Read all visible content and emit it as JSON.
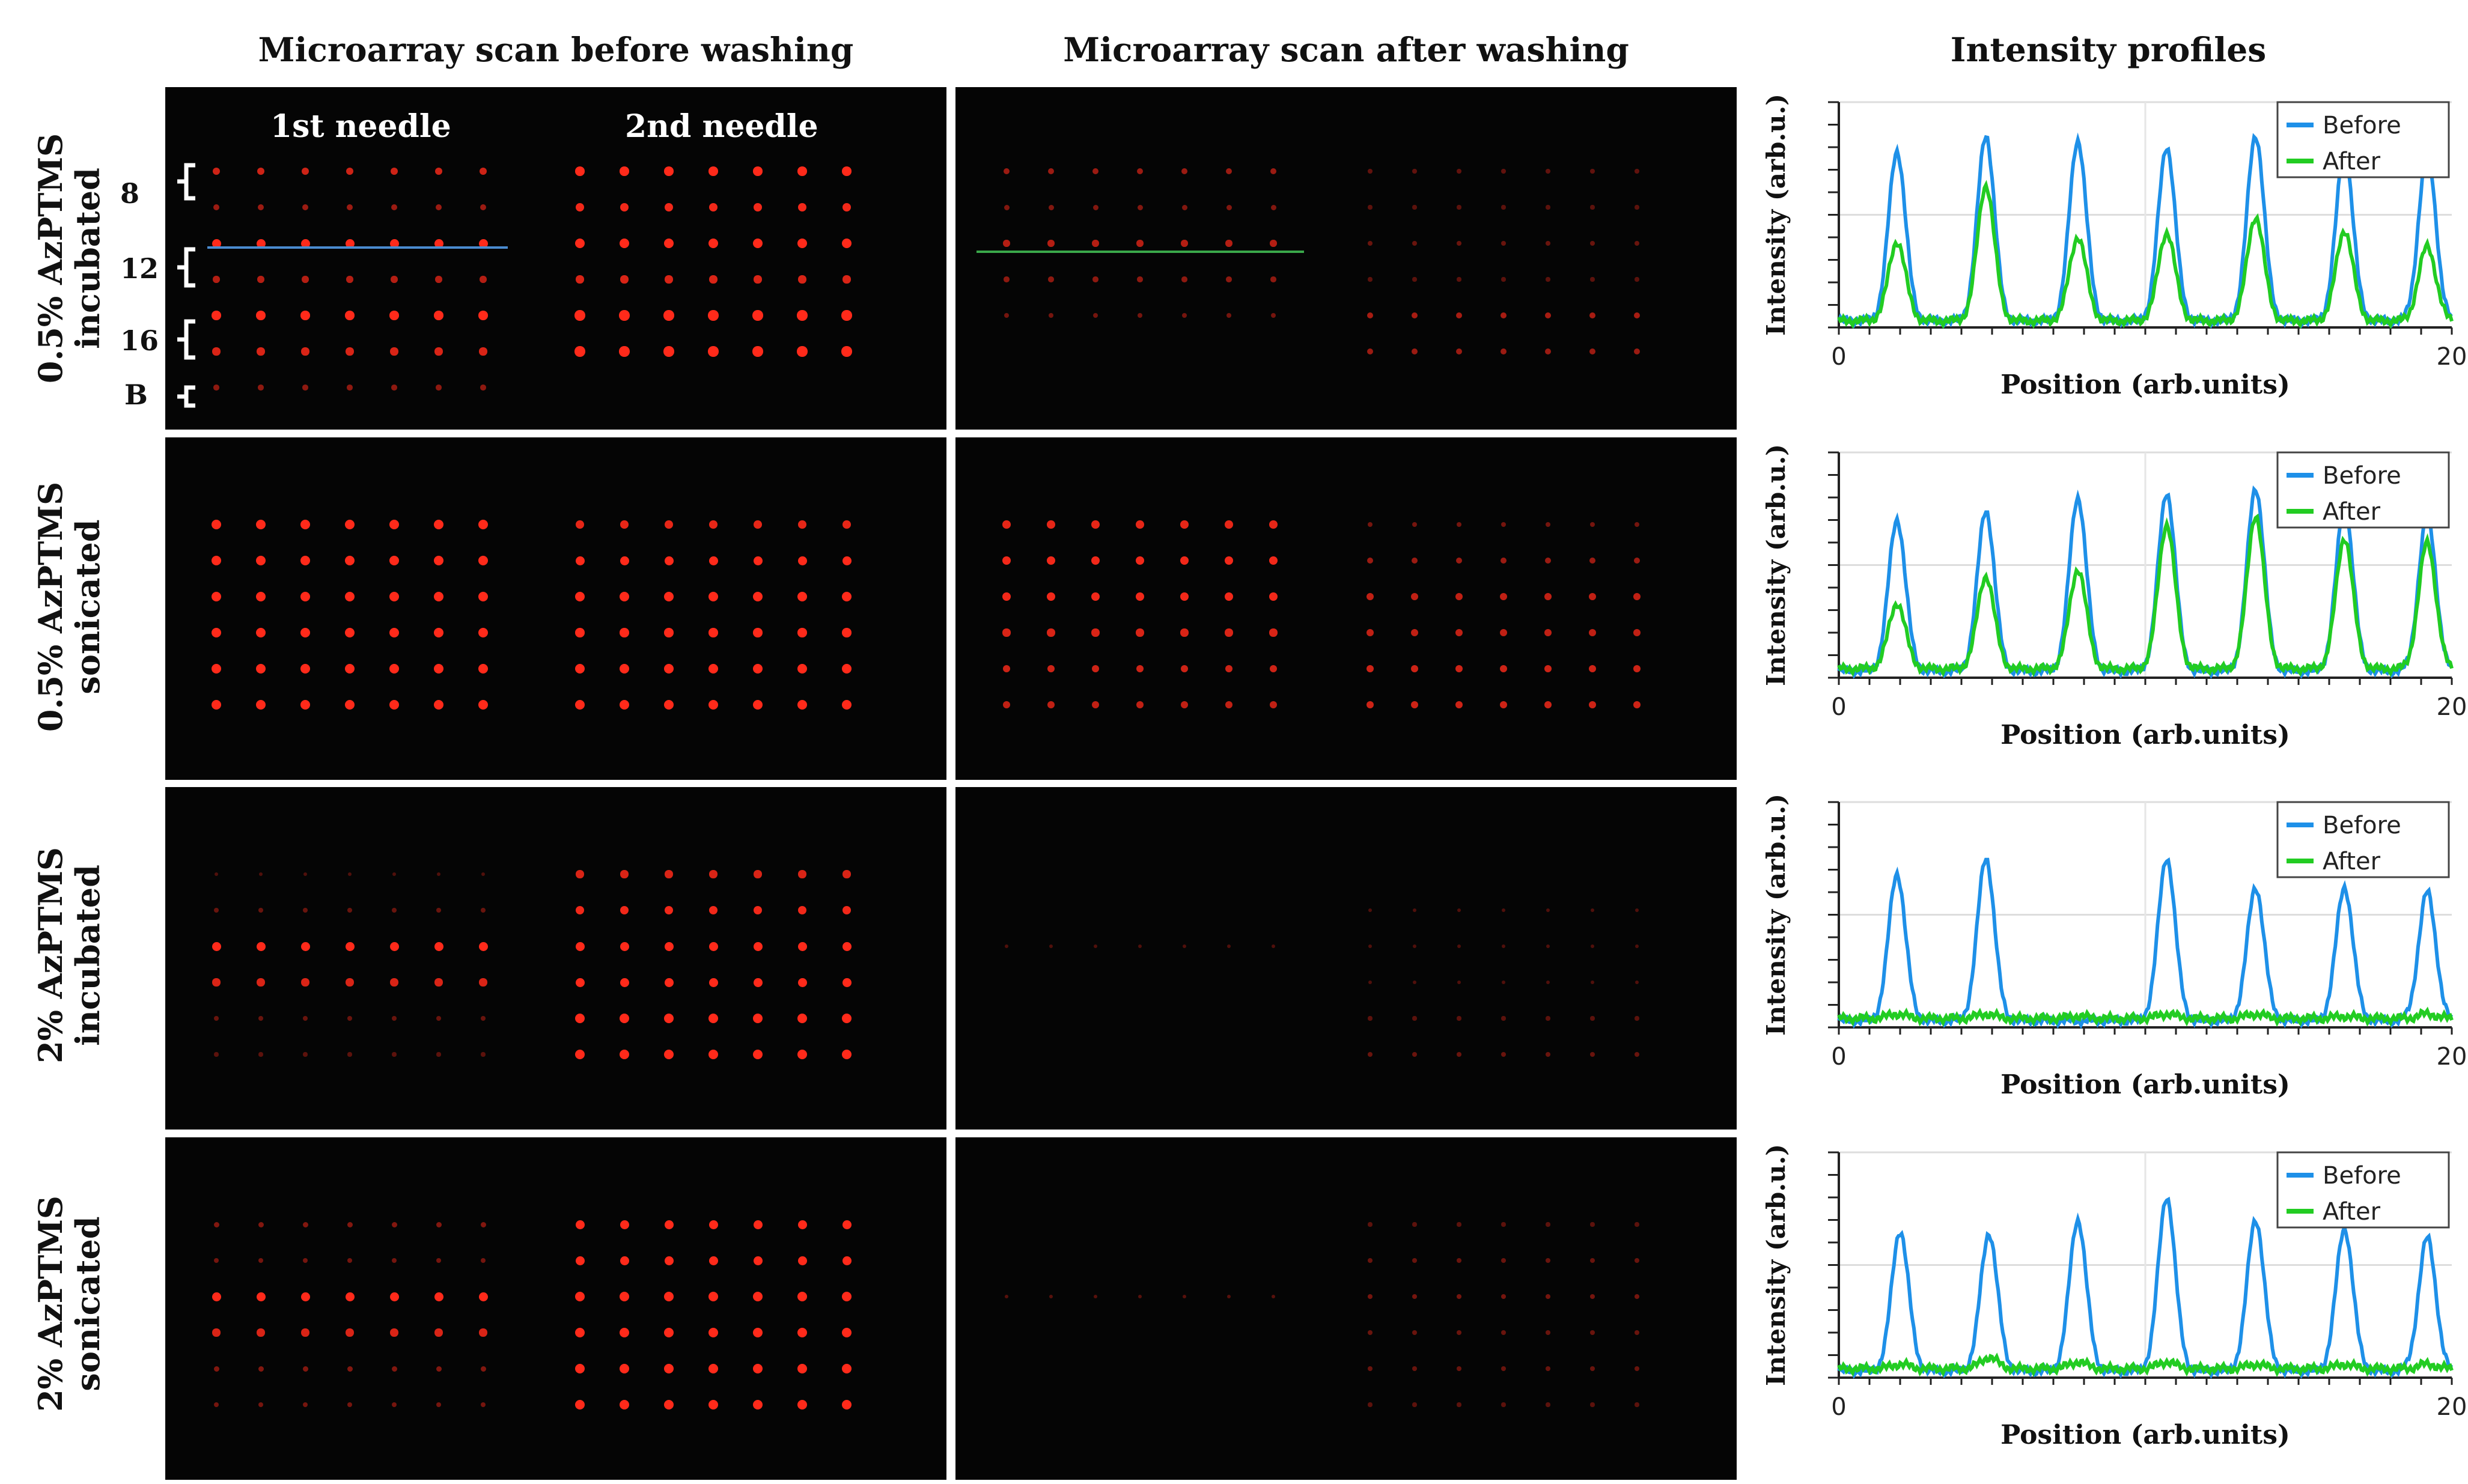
{
  "column_titles": {
    "before": "Microarray scan before washing",
    "after": "Microarray scan after washing",
    "profiles": "Intensity profiles"
  },
  "row_labels": [
    {
      "line1": "0.5% AzPTMS",
      "line2": "incubated"
    },
    {
      "line1": "0.5% AzPTMS",
      "line2": "sonicated"
    },
    {
      "line1": "2% AzPTMS",
      "line2": "incubated"
    },
    {
      "line1": "2% AzPTMS",
      "line2": "sonicated"
    }
  ],
  "needle_labels": {
    "first": "1st needle",
    "second": "2nd needle"
  },
  "concentration_labels": [
    "8",
    "12",
    "16",
    "B"
  ],
  "colors": {
    "before": "#1e90e8",
    "after": "#22cc22",
    "spot": "#ff2a1a",
    "panel": "#050505"
  },
  "chart_data": [
    {
      "type": "line",
      "title": "",
      "xlabel": "Position (arb.units)",
      "ylabel": "Intensity (arb.u.)",
      "xlim": [
        0,
        20
      ],
      "x_ticks": [
        "0",
        "20"
      ],
      "ylim": [
        0,
        1
      ],
      "legend": "top-right",
      "series": [
        {
          "name": "Before",
          "peaks_x": [
            1.9,
            4.8,
            7.8,
            10.7,
            13.6,
            16.5,
            19.2
          ],
          "peaks_y": [
            0.78,
            0.85,
            0.83,
            0.8,
            0.85,
            0.78,
            0.78
          ],
          "baseline": 0.03
        },
        {
          "name": "After",
          "peaks_x": [
            1.9,
            4.8,
            7.8,
            10.7,
            13.6,
            16.5,
            19.2
          ],
          "peaks_y": [
            0.38,
            0.63,
            0.4,
            0.42,
            0.49,
            0.43,
            0.36
          ],
          "baseline": 0.03
        }
      ]
    },
    {
      "type": "line",
      "title": "",
      "xlabel": "Position (arb.units)",
      "ylabel": "Intensity (arb.u.)",
      "xlim": [
        0,
        20
      ],
      "x_ticks": [
        "0",
        "20"
      ],
      "ylim": [
        0,
        1
      ],
      "legend": "top-right",
      "series": [
        {
          "name": "Before",
          "peaks_x": [
            1.9,
            4.8,
            7.8,
            10.7,
            13.6,
            16.5,
            19.2
          ],
          "peaks_y": [
            0.7,
            0.74,
            0.8,
            0.82,
            0.84,
            0.76,
            0.72
          ],
          "baseline": 0.03
        },
        {
          "name": "After",
          "peaks_x": [
            1.9,
            4.8,
            7.8,
            10.7,
            13.6,
            16.5,
            19.2
          ],
          "peaks_y": [
            0.33,
            0.45,
            0.48,
            0.68,
            0.72,
            0.62,
            0.6
          ],
          "baseline": 0.04
        }
      ]
    },
    {
      "type": "line",
      "title": "",
      "xlabel": "Position (arb.units)",
      "ylabel": "Intensity (arb.u.)",
      "xlim": [
        0,
        20
      ],
      "x_ticks": [
        "0",
        "20"
      ],
      "ylim": [
        0,
        1
      ],
      "legend": "top-right",
      "series": [
        {
          "name": "Before",
          "peaks_x": [
            1.9,
            4.8,
            10.7,
            13.6,
            16.5,
            19.2
          ],
          "peaks_y": [
            0.68,
            0.75,
            0.75,
            0.62,
            0.62,
            0.6
          ],
          "baseline": 0.03
        },
        {
          "name": "After",
          "peaks_x": [
            1.9,
            4.8,
            7.8,
            10.7,
            13.6,
            16.5,
            19.2
          ],
          "peaks_y": [
            0.06,
            0.06,
            0.05,
            0.06,
            0.06,
            0.05,
            0.06
          ],
          "baseline": 0.04
        }
      ]
    },
    {
      "type": "line",
      "title": "",
      "xlabel": "Position (arb.units)",
      "ylabel": "Intensity (arb.u.)",
      "xlim": [
        0,
        20
      ],
      "x_ticks": [
        "0",
        "20"
      ],
      "ylim": [
        0,
        1
      ],
      "legend": "top-right",
      "series": [
        {
          "name": "Before",
          "peaks_x": [
            2.0,
            4.9,
            7.8,
            10.7,
            13.6,
            16.5,
            19.2
          ],
          "peaks_y": [
            0.65,
            0.64,
            0.7,
            0.8,
            0.7,
            0.66,
            0.62
          ],
          "baseline": 0.03
        },
        {
          "name": "After",
          "peaks_x": [
            2.0,
            4.9,
            7.8,
            10.7,
            13.6,
            16.5,
            19.2
          ],
          "peaks_y": [
            0.06,
            0.09,
            0.07,
            0.07,
            0.06,
            0.06,
            0.06
          ],
          "baseline": 0.04
        }
      ]
    }
  ],
  "microarray_panels": [
    {
      "before": {
        "row_level": [
          0.55,
          0.35,
          0.75,
          0.45,
          0.8,
          0.6,
          0.3
        ],
        "right_row_level": [
          0.8,
          0.7,
          0.85,
          0.6,
          0.95,
          0.95,
          0.0
        ],
        "line": "#4a8bd0"
      },
      "after": {
        "row_level": [
          0.35,
          0.25,
          0.45,
          0.3,
          0.2,
          0.0,
          0.0
        ],
        "right_row_level": [
          0.12,
          0.1,
          0.15,
          0.1,
          0.4,
          0.35,
          0.0
        ],
        "line": "#3aa84a"
      }
    },
    {
      "before": {
        "row_level": [
          0.85,
          0.85,
          0.9,
          0.9,
          0.9,
          0.85
        ],
        "right_row_level": [
          0.65,
          0.75,
          0.85,
          0.8,
          0.9,
          0.85
        ]
      },
      "after": {
        "row_level": [
          0.65,
          0.7,
          0.7,
          0.6,
          0.55,
          0.5
        ],
        "right_row_level": [
          0.2,
          0.35,
          0.5,
          0.5,
          0.55,
          0.55
        ]
      }
    },
    {
      "before": {
        "row_level": [
          0.05,
          0.15,
          0.75,
          0.6,
          0.15,
          0.1
        ],
        "right_row_level": [
          0.6,
          0.7,
          0.75,
          0.75,
          0.85,
          0.85
        ]
      },
      "after": {
        "row_level": [
          0.0,
          0.0,
          0.05,
          0.0,
          0.0,
          0.0
        ],
        "right_row_level": [
          0.0,
          0.05,
          0.05,
          0.05,
          0.1,
          0.15
        ]
      }
    },
    {
      "before": {
        "row_level": [
          0.25,
          0.2,
          0.75,
          0.6,
          0.25,
          0.2
        ],
        "right_row_level": [
          0.75,
          0.75,
          0.85,
          0.85,
          0.85,
          0.85
        ]
      },
      "after": {
        "row_level": [
          0.0,
          0.0,
          0.08,
          0.0,
          0.0,
          0.0
        ],
        "right_row_level": [
          0.1,
          0.15,
          0.2,
          0.15,
          0.15,
          0.1
        ]
      }
    }
  ]
}
